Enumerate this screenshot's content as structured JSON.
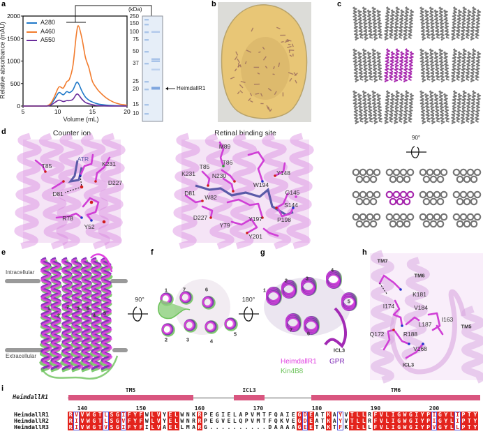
{
  "panel_labels": {
    "a": "a",
    "b": "b",
    "c": "c",
    "d": "d",
    "e": "e",
    "f": "f",
    "g": "g",
    "h": "h",
    "i": "i"
  },
  "chart_data": {
    "type": "line",
    "title": "",
    "xlabel": "Volume (mL)",
    "ylabel": "Relative absorbance (mAU)",
    "xlim": [
      5,
      20
    ],
    "ylim": [
      0,
      2000
    ],
    "xticks": [
      5,
      10,
      15,
      20
    ],
    "yticks": [
      0,
      500,
      1000,
      1500,
      2000
    ],
    "grid": false,
    "legend": "top-left",
    "series": [
      {
        "name": "A280",
        "color": "#1f78c8",
        "x": [
          5,
          8,
          8.5,
          9,
          9.5,
          10,
          10.3,
          10.8,
          11.3,
          11.7,
          12.2,
          12.7,
          13,
          13.5,
          14,
          14.5,
          15,
          15.5,
          16,
          17,
          18,
          19,
          20
        ],
        "y": [
          0,
          0,
          3,
          40,
          140,
          270,
          300,
          250,
          320,
          300,
          360,
          520,
          500,
          330,
          200,
          130,
          90,
          60,
          40,
          20,
          10,
          5,
          3
        ]
      },
      {
        "name": "A460",
        "color": "#f27b2c",
        "x": [
          5,
          8,
          8.5,
          9,
          9.5,
          10,
          10.3,
          10.8,
          11.3,
          11.7,
          12.2,
          12.7,
          13,
          13.5,
          14,
          14.5,
          15,
          15.5,
          16,
          17,
          18,
          19,
          20
        ],
        "y": [
          0,
          0,
          5,
          60,
          200,
          380,
          430,
          400,
          540,
          600,
          900,
          1600,
          1780,
          1500,
          1080,
          850,
          550,
          420,
          320,
          180,
          90,
          40,
          20
        ]
      },
      {
        "name": "A550",
        "color": "#6a2c9b",
        "x": [
          5,
          8,
          8.5,
          9,
          9.5,
          10,
          10.3,
          10.8,
          11.3,
          11.7,
          12.2,
          12.7,
          13,
          13.5,
          14,
          14.5,
          15,
          15.5,
          16,
          17,
          18,
          19,
          20
        ],
        "y": [
          0,
          0,
          2,
          20,
          70,
          120,
          130,
          100,
          120,
          120,
          150,
          260,
          250,
          150,
          80,
          50,
          30,
          15,
          8,
          3,
          1,
          0,
          0
        ]
      }
    ]
  },
  "gel": {
    "unit": "(kDa)",
    "markers": [
      "250",
      "150",
      "100",
      "75",
      "50",
      "37",
      "25",
      "20",
      "15",
      "10"
    ],
    "band_label": "HeimdallR1"
  },
  "panel_c": {
    "rotation": "90°"
  },
  "panel_d": {
    "counter_ion": {
      "title": "Counter ion",
      "labels": [
        "T85",
        "ATR",
        "K231",
        "D227",
        "D81",
        "R78",
        "Y52"
      ]
    },
    "retinal_site": {
      "title": "Retinal binding site",
      "labels": [
        "M89",
        "T86",
        "T85",
        "K231",
        "N230",
        "Y148",
        "W194",
        "G145",
        "D81",
        "W82",
        "S144",
        "D227",
        "Y197",
        "P198",
        "Y79",
        "Y201"
      ]
    }
  },
  "panel_e": {
    "intracellular": "Intracellular",
    "extracellular": "Extracellular",
    "helix_numbers": [
      "1",
      "2",
      "7",
      "3",
      "6",
      "4",
      "5"
    ]
  },
  "panel_f": {
    "rotation": "90°",
    "helix_numbers": [
      "1",
      "7",
      "6",
      "2",
      "3",
      "4",
      "5"
    ]
  },
  "panel_g": {
    "rotation": "180°",
    "helix_numbers": [
      "1",
      "2",
      "3",
      "4",
      "5",
      "7",
      "6"
    ],
    "loop": "ICL3"
  },
  "legend_structures": [
    {
      "name": "HeimdallR1",
      "color": "#e040e0"
    },
    {
      "name": "GPR",
      "color": "#7a22b4"
    },
    {
      "name": "Kin4B8",
      "color": "#6cc25a"
    }
  ],
  "panel_h": {
    "labels": [
      "TM7",
      "TM6",
      "K181",
      "I174",
      "V184",
      "I163",
      "L187",
      "TM5",
      "R188",
      "Q172",
      "V168",
      "ICL3"
    ]
  },
  "alignment": {
    "topology_name": "HeimdallR1",
    "topology": [
      {
        "label": "TM5"
      },
      {
        "label": "ICL3"
      },
      {
        "label": "TM6"
      }
    ],
    "ruler": [
      140,
      150,
      160,
      170,
      180,
      190,
      200
    ],
    "sequences": [
      {
        "name": "HeimdallR1",
        "seq": "RVVWGTLSGIFYFWLVYELWNKRPEGIELAPVMTFQAIEGDEATKAYVTLLRFVLIGWGIYPIGYLIPTY"
      },
      {
        "name": "HeimdallR2",
        "seq": "RIVWGTLSGVFYFWLVYELWNRRPEGVELQPVMTFQKVEGDEATKAYVTLLRFVLIGWGIYPIGYLIPTY"
      },
      {
        "name": "HeimdallR3",
        "seq": "RIVWGTVSGIFYFILVAELLMARG..........DAAAAGEETAKTFKTLLLFVLIGWGIYPVGYLLPTY"
      }
    ],
    "colors": {
      "identical": "#e3231c",
      "similar_box": "#5050d8",
      "topology": "#d9557f"
    }
  }
}
